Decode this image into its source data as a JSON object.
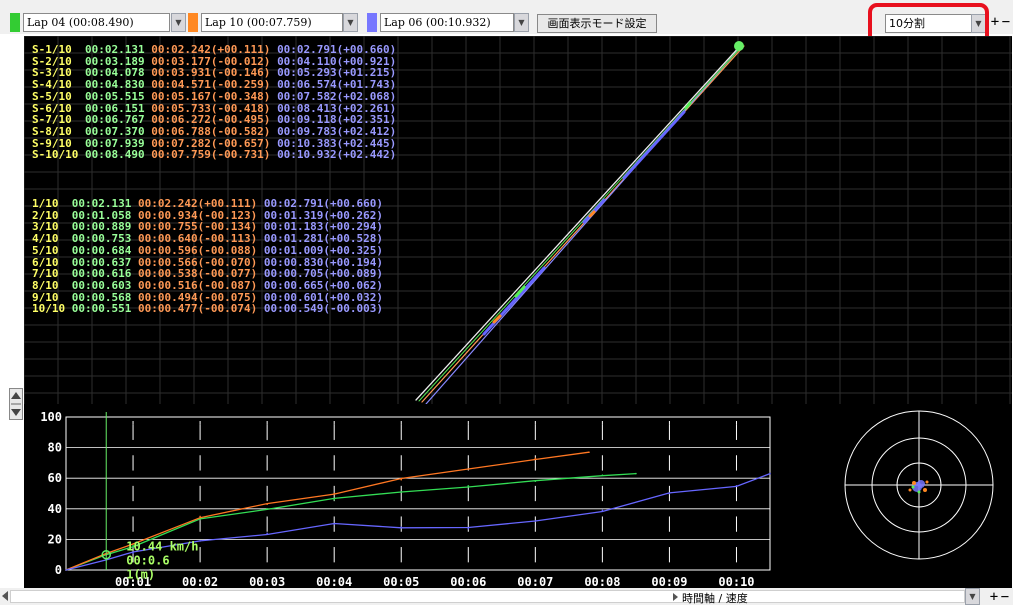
{
  "toolbar": {
    "lap_selects": [
      {
        "value": "Lap 04  (00:08.490)",
        "color": "#33cc33"
      },
      {
        "value": "Lap 10  (00:07.759)",
        "color": "#ff8822"
      },
      {
        "value": "Lap 06  (00:10.932)",
        "color": "#7777ff"
      }
    ],
    "display_mode_button": "画面表示モード設定",
    "split_select": "10分割",
    "plus_label": "+",
    "minus_label": "−"
  },
  "sector_rows": [
    {
      "label": "S-1/10",
      "a": "00:02.131",
      "b": "00:02.242(+00.111)",
      "c": "00:02.791(+00.660)"
    },
    {
      "label": "S-2/10",
      "a": "00:03.189",
      "b": "00:03.177(-00.012)",
      "c": "00:04.110(+00.921)"
    },
    {
      "label": "S-3/10",
      "a": "00:04.078",
      "b": "00:03.931(-00.146)",
      "c": "00:05.293(+01.215)"
    },
    {
      "label": "S-4/10",
      "a": "00:04.830",
      "b": "00:04.571(-00.259)",
      "c": "00:06.574(+01.743)"
    },
    {
      "label": "S-5/10",
      "a": "00:05.515",
      "b": "00:05.167(-00.348)",
      "c": "00:07.582(+02.068)"
    },
    {
      "label": "S-6/10",
      "a": "00:06.151",
      "b": "00:05.733(-00.418)",
      "c": "00:08.413(+02.261)"
    },
    {
      "label": "S-7/10",
      "a": "00:06.767",
      "b": "00:06.272(-00.495)",
      "c": "00:09.118(+02.351)"
    },
    {
      "label": "S-8/10",
      "a": "00:07.370",
      "b": "00:06.788(-00.582)",
      "c": "00:09.783(+02.412)"
    },
    {
      "label": "S-9/10",
      "a": "00:07.939",
      "b": "00:07.282(-00.657)",
      "c": "00:10.383(+02.445)"
    },
    {
      "label": "S-10/10",
      "a": "00:08.490",
      "b": "00:07.759(-00.731)",
      "c": "00:10.932(+02.442)"
    }
  ],
  "split_rows": [
    {
      "label": "1/10",
      "a": "00:02.131",
      "b": "00:02.242(+00.111)",
      "c": "00:02.791(+00.660)"
    },
    {
      "label": "2/10",
      "a": "00:01.058",
      "b": "00:00.934(-00.123)",
      "c": "00:01.319(+00.262)"
    },
    {
      "label": "3/10",
      "a": "00:00.889",
      "b": "00:00.755(-00.134)",
      "c": "00:01.183(+00.294)"
    },
    {
      "label": "4/10",
      "a": "00:00.753",
      "b": "00:00.640(-00.113)",
      "c": "00:01.281(+00.528)"
    },
    {
      "label": "5/10",
      "a": "00:00.684",
      "b": "00:00.596(-00.088)",
      "c": "00:01.009(+00.325)"
    },
    {
      "label": "6/10",
      "a": "00:00.637",
      "b": "00:00.566(-00.070)",
      "c": "00:00.830(+00.194)"
    },
    {
      "label": "7/10",
      "a": "00:00.616",
      "b": "00:00.538(-00.077)",
      "c": "00:00.705(+00.089)"
    },
    {
      "label": "8/10",
      "a": "00:00.603",
      "b": "00:00.516(-00.087)",
      "c": "00:00.665(+00.062)"
    },
    {
      "label": "9/10",
      "a": "00:00.568",
      "b": "00:00.494(-00.075)",
      "c": "00:00.601(+00.032)"
    },
    {
      "label": "10/10",
      "a": "00:00.551",
      "b": "00:00.477(-00.074)",
      "c": "00:00.549(-00.003)"
    }
  ],
  "chart_data": {
    "type": "line",
    "y_ticks": [
      "100",
      "80",
      "60",
      "40",
      "20",
      "0"
    ],
    "x_ticks": [
      "00:01",
      "00:02",
      "00:03",
      "00:04",
      "00:05",
      "00:06",
      "00:07",
      "00:08",
      "00:09",
      "00:10"
    ],
    "ylim": [
      0,
      100
    ],
    "xlim": [
      0,
      10.5
    ],
    "cursor_readout": {
      "speed": "10.44 km/h",
      "time": "00:0.6",
      "distance": "1(m)"
    },
    "series": [
      {
        "color": "#33dd55",
        "x": [
          0,
          0.6,
          1,
          2,
          3,
          4,
          5,
          6,
          7,
          8,
          8.5
        ],
        "y": [
          0,
          10,
          16,
          33,
          40,
          46,
          51,
          55,
          58,
          62,
          63
        ]
      },
      {
        "color": "#ff7722",
        "x": [
          0,
          0.6,
          1,
          2,
          3,
          4,
          5,
          6,
          7,
          7.8
        ],
        "y": [
          0,
          10,
          17,
          35,
          43,
          50,
          59,
          66,
          73,
          77
        ]
      },
      {
        "color": "#6666ff",
        "x": [
          0,
          0.6,
          1,
          2,
          3,
          4,
          5,
          6,
          7,
          8,
          9,
          10,
          10.5
        ],
        "y": [
          0,
          7,
          11,
          19,
          24,
          30,
          28,
          27,
          32,
          39,
          50,
          55,
          63
        ]
      }
    ]
  },
  "statusbar": {
    "axis_label": "時間軸 / 速度"
  }
}
